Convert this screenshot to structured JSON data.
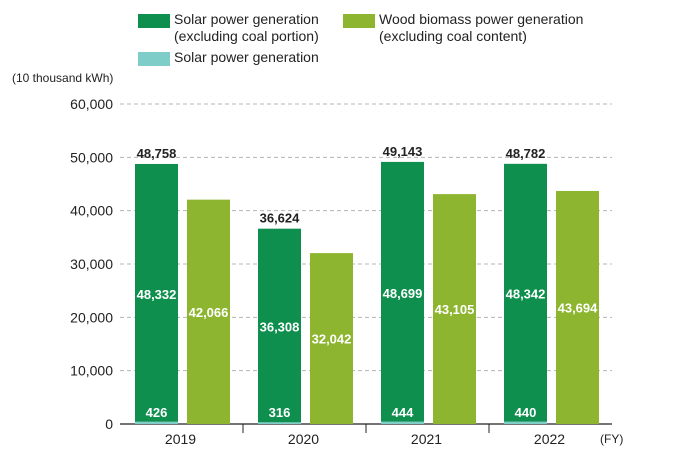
{
  "chart_data": {
    "type": "bar",
    "categories": [
      "2019",
      "2020",
      "2021",
      "2022"
    ],
    "series": [
      {
        "name": "Solar power generation (excluding coal portion)",
        "values": [
          48332,
          36308,
          48699,
          48342
        ],
        "stack": "solar",
        "color": "#0e8f4e"
      },
      {
        "name": "Solar power generation",
        "values": [
          426,
          316,
          444,
          440
        ],
        "stack": "solar",
        "color": "#7fcdc9"
      },
      {
        "name": "Wood biomass power generation (excluding coal content)",
        "values": [
          42066,
          32042,
          43105,
          43694
        ],
        "stack": "wood",
        "color": "#8db52f"
      }
    ],
    "totals": [
      48758,
      36624,
      49143,
      48782
    ],
    "ylabel": "(10 thousand kWh)",
    "xlabel": "(FY)",
    "ylim": [
      0,
      60000
    ],
    "yticks": [
      "0",
      "10,000",
      "20,000",
      "30,000",
      "40,000",
      "50,000",
      "60,000"
    ],
    "grid": true,
    "legend_position": "top"
  },
  "legend": [
    {
      "label": "Solar power generation\n(excluding coal portion)",
      "color": "#0e8f4e"
    },
    {
      "label": "Wood biomass power generation\n(excluding coal content)",
      "color": "#8db52f"
    },
    {
      "label": "Solar power generation",
      "color": "#7fcdc9"
    }
  ]
}
